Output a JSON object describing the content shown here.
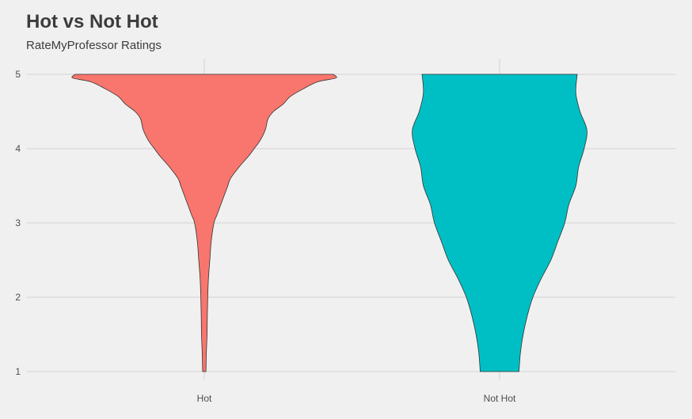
{
  "chart_data": {
    "type": "violin",
    "title": "Hot vs Not Hot",
    "subtitle": "RateMyProfessor Ratings",
    "xlabel": "",
    "ylabel": "",
    "categories": [
      "Hot",
      "Not Hot"
    ],
    "colors": [
      "#f8766d",
      "#00bfc4"
    ],
    "ylim": [
      1,
      5
    ],
    "yticks": [
      1,
      2,
      3,
      4,
      5
    ],
    "ytick_labels": [
      "1",
      "2",
      "3",
      "4",
      "5"
    ],
    "grid": true,
    "legend": "none",
    "series": [
      {
        "category": "Hot",
        "density_y": [
          1.0,
          1.25,
          1.5,
          1.75,
          2.0,
          2.25,
          2.5,
          2.75,
          3.0,
          3.1,
          3.25,
          3.4,
          3.5,
          3.6,
          3.75,
          3.9,
          4.0,
          4.1,
          4.25,
          4.4,
          4.5,
          4.6,
          4.7,
          4.8,
          4.9,
          4.95,
          5.0
        ],
        "density_width": [
          0.012,
          0.015,
          0.02,
          0.022,
          0.025,
          0.03,
          0.04,
          0.05,
          0.07,
          0.09,
          0.12,
          0.15,
          0.17,
          0.19,
          0.25,
          0.32,
          0.36,
          0.4,
          0.44,
          0.46,
          0.5,
          0.57,
          0.62,
          0.71,
          0.82,
          0.95,
          0.93
        ]
      },
      {
        "category": "Not Hot",
        "density_y": [
          1.0,
          1.25,
          1.5,
          1.75,
          2.0,
          2.25,
          2.5,
          2.75,
          3.0,
          3.25,
          3.5,
          3.75,
          4.0,
          4.25,
          4.5,
          4.75,
          5.0
        ],
        "density_width": [
          0.14,
          0.15,
          0.17,
          0.2,
          0.24,
          0.3,
          0.37,
          0.42,
          0.47,
          0.5,
          0.55,
          0.57,
          0.61,
          0.63,
          0.58,
          0.55,
          0.56
        ]
      }
    ]
  }
}
